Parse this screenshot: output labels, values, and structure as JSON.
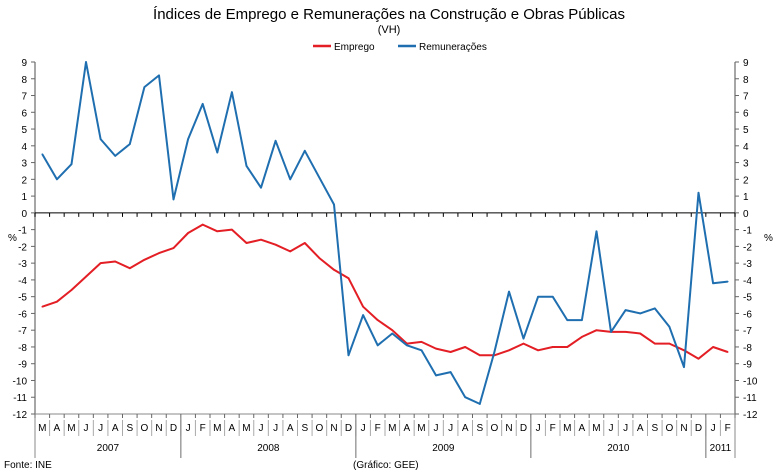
{
  "chart_data": {
    "type": "line",
    "title": "Índices de Emprego e Remunerações na Construção e Obras Públicas",
    "subtitle": "(VH)",
    "ylabel_left": "%",
    "ylabel_right": "%",
    "ylim": [
      -12,
      9
    ],
    "yticks": [
      9,
      8,
      7,
      6,
      5,
      4,
      3,
      2,
      1,
      0,
      -1,
      -2,
      -3,
      -4,
      -5,
      -6,
      -7,
      -8,
      -9,
      -10,
      -11,
      -12
    ],
    "legend_position": "top-center",
    "months": [
      "M",
      "A",
      "M",
      "J",
      "J",
      "A",
      "S",
      "O",
      "N",
      "D",
      "J",
      "F",
      "M",
      "A",
      "M",
      "J",
      "J",
      "A",
      "S",
      "O",
      "N",
      "D",
      "J",
      "F",
      "M",
      "A",
      "M",
      "J",
      "J",
      "A",
      "S",
      "O",
      "N",
      "D",
      "J",
      "F",
      "M",
      "A",
      "M",
      "J",
      "J",
      "A",
      "S",
      "O",
      "N",
      "D",
      "J",
      "F"
    ],
    "years": [
      {
        "label": "2007",
        "start": 0,
        "count": 10
      },
      {
        "label": "2008",
        "start": 10,
        "count": 12
      },
      {
        "label": "2009",
        "start": 22,
        "count": 12
      },
      {
        "label": "2010",
        "start": 34,
        "count": 12
      },
      {
        "label": "2011",
        "start": 46,
        "count": 2
      }
    ],
    "series": [
      {
        "name": "Emprego",
        "color": "#e31e24",
        "values": [
          -5.6,
          -5.3,
          -4.6,
          -3.8,
          -3.0,
          -2.9,
          -3.3,
          -2.8,
          -2.4,
          -2.1,
          -1.2,
          -0.7,
          -1.1,
          -1.0,
          -1.8,
          -1.6,
          -1.9,
          -2.3,
          -1.8,
          -2.7,
          -3.4,
          -3.9,
          -5.6,
          -6.4,
          -7.0,
          -7.8,
          -7.7,
          -8.1,
          -8.3,
          -8.0,
          -8.5,
          -8.5,
          -8.2,
          -7.8,
          -8.2,
          -8.0,
          -8.0,
          -7.4,
          -7.0,
          -7.1,
          -7.1,
          -7.2,
          -7.8,
          -7.8,
          -8.2,
          -8.7,
          -8.0,
          -8.3
        ]
      },
      {
        "name": "Remunerações",
        "color": "#1f6fb0",
        "values": [
          3.5,
          2.0,
          2.9,
          9.0,
          4.4,
          3.4,
          4.1,
          7.5,
          8.2,
          0.8,
          4.4,
          6.5,
          3.6,
          7.2,
          2.8,
          1.5,
          4.3,
          2.0,
          3.7,
          2.1,
          0.5,
          -8.5,
          -6.1,
          -7.9,
          -7.2,
          -7.9,
          -8.2,
          -9.7,
          -9.5,
          -11.0,
          -11.4,
          -8.3,
          -4.7,
          -7.5,
          -5.0,
          -5.0,
          -6.4,
          -6.4,
          -1.1,
          -7.1,
          -5.8,
          -6.0,
          -5.7,
          -6.8,
          -9.2,
          1.2,
          -4.2,
          -4.1
        ]
      }
    ],
    "source": "Fonte: INE",
    "credit": "(Gráfico: GEE)"
  }
}
